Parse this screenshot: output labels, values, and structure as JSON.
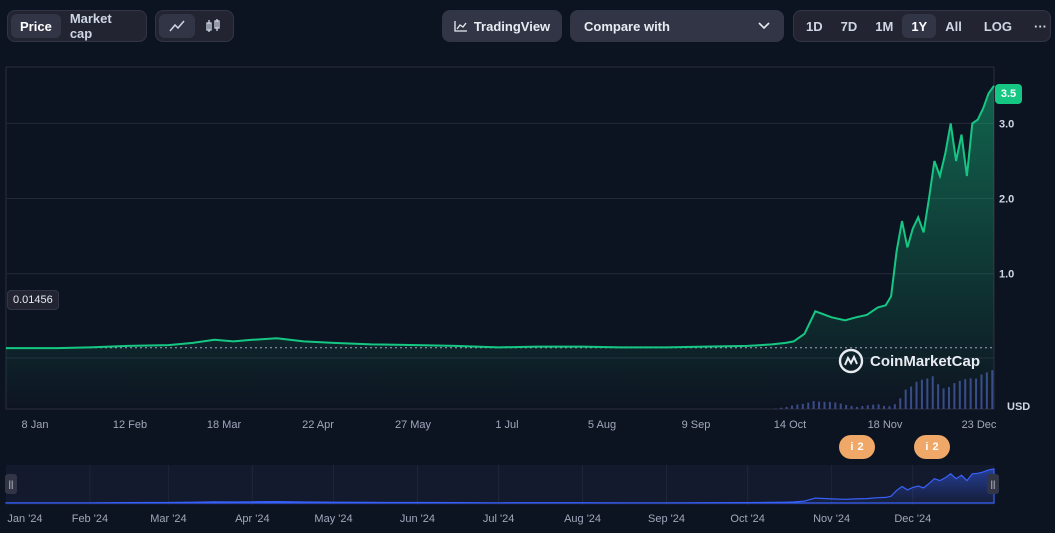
{
  "toolbar": {
    "view_toggle": [
      "Price",
      "Market cap"
    ],
    "view_active": "Price",
    "chart_type_icons": [
      "line-chart-icon",
      "candlestick-icon"
    ],
    "tradingview_label": "TradingView",
    "compare_label": "Compare with",
    "ranges": [
      "1D",
      "7D",
      "1M",
      "1Y",
      "All"
    ],
    "range_active": "1Y",
    "log_label": "LOG",
    "more_label": "···"
  },
  "colors": {
    "up": "#16c784",
    "volume": "#3a4a8a",
    "navigator": "#3861fb",
    "event": "#f0a868",
    "background": "#0d1421"
  },
  "chart_data": {
    "type": "line",
    "xlabel": "",
    "ylabel": "USD",
    "ylim": [
      -0.8,
      3.75
    ],
    "y_ticks": [
      "1.0",
      "2.0",
      "3.0"
    ],
    "y_tick_values": [
      1.0,
      2.0,
      3.0
    ],
    "x_ticks": [
      "8 Jan",
      "12 Feb",
      "18 Mar",
      "22 Apr",
      "27 May",
      "1 Jul",
      "5 Aug",
      "9 Sep",
      "14 Oct",
      "18 Nov",
      "23 Dec"
    ],
    "reference_label": "0.01456",
    "reference_value": 0.01456,
    "last_value_label": "3.5",
    "x_start": "2024-01-01",
    "x": [
      "2024-01-01",
      "2024-01-20",
      "2024-02-01",
      "2024-02-15",
      "2024-03-01",
      "2024-03-10",
      "2024-03-18",
      "2024-03-25",
      "2024-04-01",
      "2024-04-10",
      "2024-04-20",
      "2024-05-01",
      "2024-05-15",
      "2024-06-01",
      "2024-06-15",
      "2024-07-01",
      "2024-07-15",
      "2024-08-01",
      "2024-08-15",
      "2024-09-01",
      "2024-09-15",
      "2024-10-01",
      "2024-10-10",
      "2024-10-15",
      "2024-10-18",
      "2024-10-22",
      "2024-10-26",
      "2024-11-01",
      "2024-11-06",
      "2024-11-10",
      "2024-11-14",
      "2024-11-18",
      "2024-11-21",
      "2024-11-23",
      "2024-11-25",
      "2024-11-27",
      "2024-11-29",
      "2024-12-01",
      "2024-12-03",
      "2024-12-05",
      "2024-12-07",
      "2024-12-09",
      "2024-12-11",
      "2024-12-13",
      "2024-12-15",
      "2024-12-17",
      "2024-12-19",
      "2024-12-21",
      "2024-12-23",
      "2024-12-25",
      "2024-12-27",
      "2024-12-29",
      "2024-12-31"
    ],
    "y": [
      0.01,
      0.01,
      0.02,
      0.04,
      0.05,
      0.08,
      0.12,
      0.1,
      0.12,
      0.14,
      0.1,
      0.08,
      0.06,
      0.05,
      0.04,
      0.02,
      0.03,
      0.03,
      0.02,
      0.02,
      0.03,
      0.04,
      0.06,
      0.08,
      0.1,
      0.2,
      0.5,
      0.42,
      0.38,
      0.42,
      0.45,
      0.55,
      0.58,
      0.7,
      1.3,
      1.7,
      1.35,
      1.6,
      1.75,
      1.55,
      2.0,
      2.5,
      2.3,
      2.6,
      3.0,
      2.5,
      2.85,
      2.3,
      3.0,
      3.05,
      3.2,
      3.4,
      3.5
    ],
    "volume": [
      0,
      0,
      0,
      0,
      0,
      0,
      0,
      0,
      0,
      0,
      0,
      0,
      0,
      0,
      0,
      0,
      0,
      0,
      0,
      0,
      0,
      0,
      0,
      0.05,
      0.1,
      0.15,
      0.3,
      0.2,
      0.1,
      0.05,
      0.1,
      0.15,
      0.1,
      0.1,
      0.2,
      0.4,
      0.6,
      0.5,
      0.8,
      0.6,
      0.9,
      0.8,
      0.6,
      0.7,
      0.9,
      1.0,
      0.8,
      0.9,
      0.7,
      0.8,
      0.85,
      0.9,
      1.0
    ],
    "navigator_ticks": [
      "Jan '24",
      "Feb '24",
      "Mar '24",
      "Apr '24",
      "May '24",
      "Jun '24",
      "Jul '24",
      "Aug '24",
      "Sep '24",
      "Oct '24",
      "Nov '24",
      "Dec '24"
    ]
  },
  "events": [
    {
      "icon": "info-icon",
      "count": "2"
    },
    {
      "icon": "info-icon",
      "count": "2"
    }
  ],
  "watermark": "CoinMarketCap",
  "navigator_handles": [
    "||",
    "||"
  ]
}
